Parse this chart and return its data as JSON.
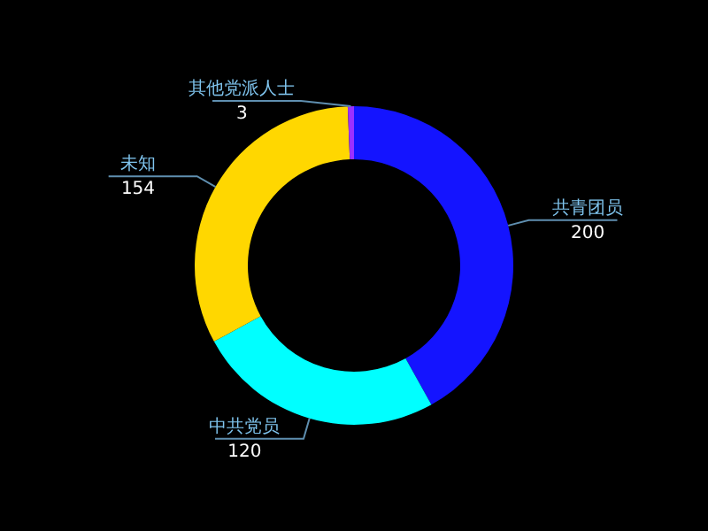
{
  "chart_data": {
    "type": "donut",
    "categories": [
      "共青团员",
      "中共党员",
      "未知",
      "其他党派人士"
    ],
    "values": [
      200,
      120,
      154,
      3
    ],
    "colors": [
      "#1414ff",
      "#00ffff",
      "#ffd700",
      "#9b30ff"
    ],
    "data_labels": true
  }
}
